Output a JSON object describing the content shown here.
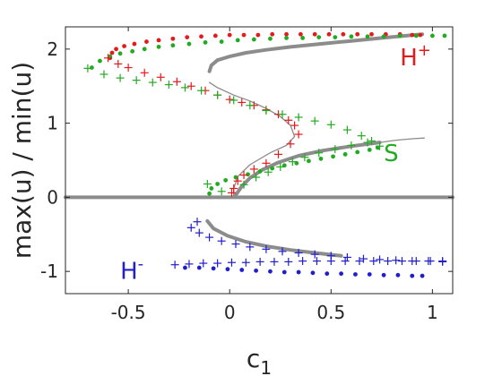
{
  "chart_data": {
    "type": "scatter",
    "xlabel": "c",
    "xlabel_sub": "1",
    "ylabel": "max(u) / min(u)",
    "xlim": [
      -0.81,
      1.1
    ],
    "ylim": [
      -1.3,
      2.3
    ],
    "xticks": [
      -0.5,
      0,
      0.5,
      1
    ],
    "xtick_labels": [
      "-0.5",
      "0",
      "0.5",
      "1"
    ],
    "yticks": [
      2,
      1,
      0,
      -1
    ],
    "ytick_labels": [
      "2",
      "1",
      "0",
      "-1"
    ],
    "grid": false,
    "box": true,
    "annotations": [
      {
        "label": "H",
        "sup": "+",
        "x": 0.84,
        "y": 1.78,
        "color": "#e41a1c"
      },
      {
        "label": "S",
        "sup": "",
        "x": 0.76,
        "y": 0.49,
        "color": "#22aa22"
      },
      {
        "label": "H",
        "sup": "-",
        "x": -0.54,
        "y": -1.1,
        "color": "#1f1fcc"
      }
    ],
    "series": [
      {
        "label": "H+ max dots",
        "color": "#e41a1c",
        "marker": "dot",
        "points": [
          [
            -0.59,
            1.88
          ],
          [
            -0.58,
            1.95
          ],
          [
            -0.56,
            2.0
          ],
          [
            -0.52,
            2.04
          ],
          [
            -0.47,
            2.07
          ],
          [
            -0.41,
            2.1
          ],
          [
            -0.35,
            2.12
          ],
          [
            -0.28,
            2.14
          ],
          [
            -0.21,
            2.16
          ],
          [
            -0.14,
            2.17
          ],
          [
            -0.07,
            2.18
          ],
          [
            0.0,
            2.19
          ],
          [
            0.07,
            2.19
          ],
          [
            0.14,
            2.19
          ],
          [
            0.21,
            2.2
          ],
          [
            0.28,
            2.2
          ],
          [
            0.35,
            2.2
          ],
          [
            0.42,
            2.2
          ],
          [
            0.49,
            2.2
          ],
          [
            0.56,
            2.2
          ],
          [
            0.63,
            2.2
          ],
          [
            0.7,
            2.2
          ],
          [
            0.77,
            2.2
          ],
          [
            0.84,
            2.2
          ],
          [
            0.9,
            2.19
          ],
          [
            0.94,
            2.19
          ]
        ]
      },
      {
        "label": "H+ min plus",
        "color": "#e41a1c",
        "marker": "plus",
        "points": [
          [
            -0.6,
            1.88
          ],
          [
            -0.55,
            1.8
          ],
          [
            -0.5,
            1.75
          ],
          [
            -0.42,
            1.68
          ],
          [
            -0.34,
            1.62
          ],
          [
            -0.26,
            1.56
          ],
          [
            -0.19,
            1.5
          ],
          [
            -0.12,
            1.44
          ],
          [
            -0.06,
            1.38
          ],
          [
            0.0,
            1.32
          ],
          [
            0.06,
            1.28
          ],
          [
            0.12,
            1.24
          ],
          [
            0.18,
            1.18
          ],
          [
            0.24,
            1.12
          ],
          [
            0.29,
            1.04
          ],
          [
            0.32,
            0.97
          ],
          [
            0.34,
            0.85
          ],
          [
            0.3,
            0.72
          ],
          [
            0.24,
            0.58
          ],
          [
            0.18,
            0.46
          ],
          [
            0.12,
            0.38
          ],
          [
            0.07,
            0.3
          ],
          [
            0.04,
            0.22
          ],
          [
            0.02,
            0.12
          ],
          [
            0.01,
            0.06
          ]
        ]
      },
      {
        "label": "S max dots",
        "color": "#22aa22",
        "marker": "dot",
        "points": [
          [
            -0.68,
            1.75
          ],
          [
            -0.64,
            1.84
          ],
          [
            -0.59,
            1.9
          ],
          [
            -0.54,
            1.94
          ],
          [
            -0.48,
            1.97
          ],
          [
            -0.42,
            2.0
          ],
          [
            -0.35,
            2.03
          ],
          [
            -0.28,
            2.05
          ],
          [
            -0.2,
            2.07
          ],
          [
            -0.12,
            2.09
          ],
          [
            -0.04,
            2.1
          ],
          [
            0.04,
            2.12
          ],
          [
            0.12,
            2.13
          ],
          [
            0.2,
            2.14
          ],
          [
            0.28,
            2.15
          ],
          [
            0.36,
            2.15
          ],
          [
            0.44,
            2.16
          ],
          [
            0.52,
            2.16
          ],
          [
            0.6,
            2.17
          ],
          [
            0.68,
            2.17
          ],
          [
            0.76,
            2.17
          ],
          [
            0.84,
            2.18
          ],
          [
            0.92,
            2.18
          ],
          [
            1.0,
            2.18
          ],
          [
            1.06,
            2.18
          ]
        ]
      },
      {
        "label": "S min plus",
        "color": "#22aa22",
        "marker": "plus",
        "points": [
          [
            -0.7,
            1.74
          ],
          [
            -0.62,
            1.66
          ],
          [
            -0.54,
            1.61
          ],
          [
            -0.46,
            1.58
          ],
          [
            -0.38,
            1.55
          ],
          [
            -0.3,
            1.52
          ],
          [
            -0.22,
            1.48
          ],
          [
            -0.14,
            1.44
          ],
          [
            -0.06,
            1.38
          ],
          [
            0.02,
            1.31
          ],
          [
            0.1,
            1.24
          ],
          [
            0.18,
            1.17
          ],
          [
            0.26,
            1.12
          ],
          [
            0.34,
            1.08
          ],
          [
            0.42,
            1.03
          ],
          [
            0.5,
            0.98
          ],
          [
            0.58,
            0.91
          ],
          [
            0.65,
            0.83
          ],
          [
            0.7,
            0.76
          ],
          [
            0.74,
            0.69
          ]
        ]
      },
      {
        "label": "S lower dots",
        "color": "#22aa22",
        "marker": "dot",
        "points": [
          [
            -0.1,
            0.05
          ],
          [
            -0.09,
            0.12
          ],
          [
            -0.06,
            0.18
          ],
          [
            -0.02,
            0.23
          ],
          [
            0.03,
            0.27
          ],
          [
            0.09,
            0.31
          ],
          [
            0.15,
            0.35
          ],
          [
            0.21,
            0.39
          ],
          [
            0.27,
            0.43
          ],
          [
            0.33,
            0.46
          ],
          [
            0.39,
            0.49
          ],
          [
            0.45,
            0.52
          ],
          [
            0.51,
            0.55
          ],
          [
            0.57,
            0.58
          ],
          [
            0.63,
            0.61
          ],
          [
            0.69,
            0.64
          ],
          [
            0.73,
            0.67
          ]
        ]
      },
      {
        "label": "S lower plus",
        "color": "#22aa22",
        "marker": "plus",
        "points": [
          [
            -0.11,
            0.18
          ],
          [
            -0.04,
            0.08
          ],
          [
            0.07,
            0.17
          ],
          [
            0.13,
            0.27
          ],
          [
            0.19,
            0.34
          ],
          [
            0.25,
            0.41
          ],
          [
            0.31,
            0.48
          ],
          [
            0.37,
            0.54
          ],
          [
            0.44,
            0.6
          ],
          [
            0.52,
            0.65
          ],
          [
            0.6,
            0.7
          ],
          [
            0.68,
            0.74
          ]
        ]
      },
      {
        "label": "H- min dots",
        "color": "#1f1fcc",
        "marker": "dot",
        "points": [
          [
            -0.22,
            -0.95
          ],
          [
            -0.15,
            -0.95
          ],
          [
            -0.08,
            -0.96
          ],
          [
            -0.01,
            -0.97
          ],
          [
            0.06,
            -0.98
          ],
          [
            0.13,
            -0.99
          ],
          [
            0.2,
            -1.0
          ],
          [
            0.27,
            -1.01
          ],
          [
            0.34,
            -1.01
          ],
          [
            0.41,
            -1.02
          ],
          [
            0.48,
            -1.03
          ],
          [
            0.55,
            -1.03
          ],
          [
            0.62,
            -1.04
          ],
          [
            0.69,
            -1.04
          ],
          [
            0.76,
            -1.05
          ],
          [
            0.83,
            -1.05
          ],
          [
            0.9,
            -1.06
          ],
          [
            0.95,
            -1.06
          ]
        ]
      },
      {
        "label": "H- min plus",
        "color": "#1f1fcc",
        "marker": "plus",
        "points": [
          [
            -0.27,
            -0.91
          ],
          [
            -0.2,
            -0.9
          ],
          [
            -0.13,
            -0.89
          ],
          [
            -0.06,
            -0.89
          ],
          [
            0.01,
            -0.88
          ],
          [
            0.08,
            -0.88
          ],
          [
            0.15,
            -0.87
          ],
          [
            0.22,
            -0.87
          ],
          [
            0.29,
            -0.87
          ],
          [
            0.36,
            -0.86
          ],
          [
            0.43,
            -0.86
          ],
          [
            0.5,
            -0.86
          ],
          [
            0.57,
            -0.86
          ],
          [
            0.64,
            -0.86
          ],
          [
            0.71,
            -0.86
          ],
          [
            0.78,
            -0.86
          ],
          [
            0.85,
            -0.86
          ],
          [
            0.92,
            -0.86
          ],
          [
            0.99,
            -0.86
          ],
          [
            1.05,
            -0.86
          ]
        ]
      },
      {
        "label": "H- max plus",
        "color": "#1f1fcc",
        "marker": "plus",
        "points": [
          [
            -0.16,
            -0.33
          ],
          [
            -0.19,
            -0.41
          ],
          [
            -0.15,
            -0.48
          ],
          [
            -0.1,
            -0.54
          ],
          [
            -0.04,
            -0.59
          ],
          [
            0.03,
            -0.63
          ],
          [
            0.1,
            -0.67
          ],
          [
            0.18,
            -0.7
          ],
          [
            0.26,
            -0.73
          ],
          [
            0.34,
            -0.75
          ],
          [
            0.42,
            -0.77
          ],
          [
            0.5,
            -0.79
          ],
          [
            0.58,
            -0.81
          ],
          [
            0.66,
            -0.83
          ],
          [
            0.74,
            -0.84
          ],
          [
            0.82,
            -0.85
          ],
          [
            0.9,
            -0.86
          ],
          [
            0.98,
            -0.86
          ],
          [
            1.05,
            -0.87
          ]
        ]
      },
      {
        "label": "upper grey branch",
        "color": "#8c8c8c",
        "marker": "thickline",
        "points": [
          [
            -0.1,
            1.7
          ],
          [
            -0.09,
            1.78
          ],
          [
            -0.06,
            1.85
          ],
          [
            0.0,
            1.9
          ],
          [
            0.08,
            1.95
          ],
          [
            0.18,
            1.99
          ],
          [
            0.3,
            2.03
          ],
          [
            0.45,
            2.07
          ],
          [
            0.6,
            2.11
          ],
          [
            0.75,
            2.15
          ],
          [
            0.87,
            2.18
          ],
          [
            0.95,
            2.2
          ]
        ]
      },
      {
        "label": "middle grey branch",
        "color": "#8c8c8c",
        "marker": "thickline",
        "points": [
          [
            0.03,
            0.03
          ],
          [
            0.06,
            0.15
          ],
          [
            0.1,
            0.26
          ],
          [
            0.16,
            0.37
          ],
          [
            0.24,
            0.47
          ],
          [
            0.34,
            0.56
          ],
          [
            0.46,
            0.63
          ],
          [
            0.6,
            0.69
          ],
          [
            0.74,
            0.74
          ]
        ]
      },
      {
        "label": "lower grey branch",
        "color": "#8c8c8c",
        "marker": "thickline",
        "points": [
          [
            -0.11,
            -0.32
          ],
          [
            -0.08,
            -0.42
          ],
          [
            -0.01,
            -0.52
          ],
          [
            0.08,
            -0.6
          ],
          [
            0.18,
            -0.66
          ],
          [
            0.3,
            -0.71
          ],
          [
            0.42,
            -0.75
          ],
          [
            0.55,
            -0.79
          ]
        ]
      },
      {
        "label": "unstable grey curve",
        "color": "#8c8c8c",
        "marker": "line",
        "points": [
          [
            -0.1,
            1.55
          ],
          [
            -0.06,
            1.48
          ],
          [
            0.02,
            1.38
          ],
          [
            0.1,
            1.3
          ],
          [
            0.18,
            1.2
          ],
          [
            0.25,
            1.09
          ],
          [
            0.3,
            0.97
          ],
          [
            0.32,
            0.82
          ],
          [
            0.28,
            0.7
          ],
          [
            0.2,
            0.6
          ],
          [
            0.1,
            0.44
          ],
          [
            0.04,
            0.28
          ],
          [
            0.02,
            0.12
          ],
          [
            0.02,
            0.0
          ]
        ]
      },
      {
        "label": "unstable upper tail",
        "color": "#8c8c8c",
        "marker": "line",
        "points": [
          [
            0.74,
            0.74
          ],
          [
            0.82,
            0.77
          ],
          [
            0.9,
            0.79
          ],
          [
            0.96,
            0.8
          ]
        ]
      },
      {
        "label": "zero line",
        "color": "#8c8c8c",
        "marker": "thickline",
        "points": [
          [
            -0.81,
            0.0
          ],
          [
            1.1,
            0.0
          ]
        ]
      }
    ]
  }
}
